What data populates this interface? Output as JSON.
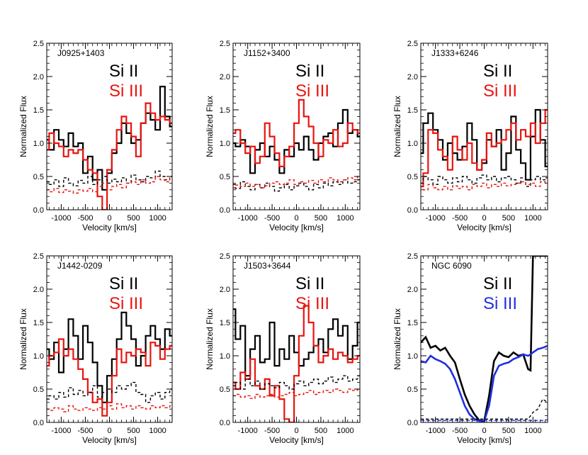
{
  "figure": {
    "xlabel": "Velocity [km/s]",
    "ylabel": "Normalized Flux",
    "si2_label": "Si II",
    "si3_label": "Si III",
    "xticks": [
      "-1000",
      "-500",
      "0",
      "500",
      "1000"
    ],
    "yticks": [
      "0.0",
      "0.5",
      "1.0",
      "1.5",
      "2.0",
      "2.5"
    ],
    "colors": {
      "si2": "#000000",
      "si3_red": "#e8140f",
      "si3_blue": "#1f2fe0",
      "axis": "#000000"
    }
  },
  "chart_data": [
    {
      "type": "line",
      "title": "J0925+1403",
      "xlabel": "Velocity [km/s]",
      "ylabel": "Normalized Flux",
      "xlim": [
        -1300,
        1300
      ],
      "ylim": [
        0,
        2.5
      ],
      "step": true,
      "x": [
        -1300,
        -1200,
        -1100,
        -1000,
        -900,
        -800,
        -700,
        -600,
        -500,
        -400,
        -300,
        -200,
        -100,
        0,
        100,
        200,
        300,
        400,
        500,
        600,
        700,
        800,
        900,
        1000,
        1100,
        1200,
        1300
      ],
      "series": [
        {
          "name": "Si II",
          "color": "#000000",
          "width": 2.2,
          "dash": "",
          "values": [
            1.05,
            0.9,
            1.2,
            1.05,
            0.95,
            1.15,
            0.95,
            1.0,
            0.55,
            0.8,
            0.45,
            0.6,
            0.3,
            0.55,
            0.85,
            1.0,
            1.3,
            1.15,
            1.0,
            1.05,
            1.3,
            1.45,
            1.35,
            1.2,
            1.85,
            1.4,
            1.25
          ]
        },
        {
          "name": "Si III",
          "color": "#e8140f",
          "width": 2.2,
          "dash": "",
          "values": [
            0.9,
            1.15,
            1.0,
            0.95,
            0.8,
            0.9,
            0.85,
            0.9,
            0.75,
            0.6,
            0.55,
            0.2,
            0.0,
            0.6,
            0.9,
            1.2,
            1.4,
            1.3,
            1.1,
            0.8,
            1.3,
            1.6,
            1.45,
            1.35,
            1.4,
            1.35,
            1.3
          ]
        },
        {
          "name": "",
          "color": "#000000",
          "width": 1.4,
          "dash": "4,3",
          "values": [
            0.42,
            0.38,
            0.45,
            0.35,
            0.48,
            0.4,
            0.36,
            0.44,
            0.4,
            0.5,
            0.38,
            0.45,
            0.5,
            0.4,
            0.46,
            0.42,
            0.48,
            0.4,
            0.52,
            0.45,
            0.42,
            0.5,
            0.48,
            0.58,
            0.5,
            0.45,
            0.5
          ]
        },
        {
          "name": "",
          "color": "#e8140f",
          "width": 1.4,
          "dash": "4,3",
          "values": [
            0.3,
            0.27,
            0.32,
            0.26,
            0.3,
            0.28,
            0.25,
            0.3,
            0.28,
            0.32,
            0.27,
            0.35,
            0.4,
            0.3,
            0.35,
            0.38,
            0.33,
            0.4,
            0.42,
            0.38,
            0.45,
            0.4,
            0.42,
            0.5,
            0.45,
            0.42,
            0.5
          ]
        }
      ]
    },
    {
      "type": "line",
      "title": "J1152+3400",
      "xlabel": "Velocity [km/s]",
      "ylabel": "Normalized Flux",
      "xlim": [
        -1300,
        1300
      ],
      "ylim": [
        0,
        2.5
      ],
      "step": true,
      "x": [
        -1300,
        -1200,
        -1100,
        -1000,
        -900,
        -800,
        -700,
        -600,
        -500,
        -400,
        -300,
        -200,
        -100,
        0,
        100,
        200,
        300,
        400,
        500,
        600,
        700,
        800,
        900,
        1000,
        1100,
        1200,
        1300
      ],
      "series": [
        {
          "name": "Si II",
          "color": "#000000",
          "width": 2.2,
          "dash": "",
          "values": [
            1.0,
            0.95,
            1.05,
            0.95,
            0.55,
            0.9,
            1.0,
            0.8,
            0.95,
            0.75,
            0.55,
            0.9,
            0.8,
            1.0,
            0.9,
            1.1,
            0.9,
            0.75,
            1.0,
            1.1,
            1.15,
            0.95,
            1.3,
            1.5,
            1.15,
            1.2,
            1.1
          ]
        },
        {
          "name": "Si III",
          "color": "#e8140f",
          "width": 2.2,
          "dash": "",
          "values": [
            1.15,
            1.2,
            1.0,
            0.85,
            0.95,
            0.7,
            0.8,
            1.3,
            1.1,
            0.85,
            0.65,
            0.8,
            0.95,
            1.3,
            1.65,
            1.4,
            1.25,
            1.0,
            0.8,
            1.05,
            1.0,
            1.2,
            0.95,
            1.0,
            1.3,
            1.2,
            1.15
          ]
        },
        {
          "name": "",
          "color": "#000000",
          "width": 1.4,
          "dash": "4,3",
          "values": [
            0.38,
            0.32,
            0.42,
            0.35,
            0.3,
            0.38,
            0.33,
            0.4,
            0.35,
            0.28,
            0.33,
            0.38,
            0.3,
            0.36,
            0.4,
            0.35,
            0.3,
            0.38,
            0.33,
            0.4,
            0.36,
            0.42,
            0.38,
            0.45,
            0.4,
            0.42,
            0.45
          ]
        },
        {
          "name": "",
          "color": "#e8140f",
          "width": 1.4,
          "dash": "4,3",
          "values": [
            0.33,
            0.37,
            0.35,
            0.4,
            0.35,
            0.38,
            0.33,
            0.36,
            0.4,
            0.42,
            0.38,
            0.4,
            0.45,
            0.38,
            0.42,
            0.4,
            0.44,
            0.4,
            0.45,
            0.42,
            0.48,
            0.45,
            0.42,
            0.45,
            0.48,
            0.45,
            0.5
          ]
        }
      ]
    },
    {
      "type": "line",
      "title": "J1333+6246",
      "xlabel": "Velocity [km/s]",
      "ylabel": "Normalized Flux",
      "xlim": [
        -1300,
        1300
      ],
      "ylim": [
        0,
        2.5
      ],
      "step": true,
      "x": [
        -1300,
        -1200,
        -1100,
        -1000,
        -900,
        -800,
        -700,
        -600,
        -500,
        -400,
        -300,
        -200,
        -100,
        0,
        100,
        200,
        300,
        400,
        500,
        600,
        700,
        800,
        900,
        1000,
        1100,
        1200,
        1300
      ],
      "series": [
        {
          "name": "Si II",
          "color": "#000000",
          "width": 2.2,
          "dash": "",
          "values": [
            0.85,
            1.3,
            1.45,
            1.2,
            1.05,
            0.75,
            1.0,
            0.85,
            0.75,
            0.95,
            1.3,
            1.05,
            0.6,
            0.7,
            1.05,
            0.95,
            1.2,
            0.6,
            0.85,
            1.4,
            0.9,
            0.7,
            0.45,
            1.1,
            1.5,
            1.05,
            0.65
          ]
        },
        {
          "name": "Si III",
          "color": "#e8140f",
          "width": 2.2,
          "dash": "",
          "values": [
            0.35,
            0.55,
            1.2,
            1.15,
            0.9,
            0.8,
            0.6,
            1.1,
            0.9,
            0.75,
            1.0,
            0.7,
            0.6,
            0.75,
            1.15,
            0.95,
            1.0,
            1.05,
            1.2,
            1.3,
            1.05,
            1.2,
            1.1,
            1.3,
            1.0,
            1.3,
            1.5
          ]
        },
        {
          "name": "",
          "color": "#000000",
          "width": 1.4,
          "dash": "4,3",
          "values": [
            0.4,
            0.5,
            0.45,
            0.38,
            0.5,
            0.45,
            0.4,
            0.48,
            0.42,
            0.5,
            0.45,
            0.4,
            0.48,
            0.52,
            0.45,
            0.5,
            0.42,
            0.48,
            0.5,
            0.45,
            0.4,
            0.48,
            0.35,
            0.45,
            0.5,
            0.45,
            0.48
          ]
        },
        {
          "name": "",
          "color": "#e8140f",
          "width": 1.4,
          "dash": "4,3",
          "values": [
            0.35,
            0.3,
            0.38,
            0.33,
            0.3,
            0.35,
            0.3,
            0.36,
            0.32,
            0.35,
            0.3,
            0.38,
            0.35,
            0.4,
            0.33,
            0.38,
            0.35,
            0.4,
            0.36,
            0.38,
            0.4,
            0.42,
            0.38,
            0.4,
            0.35,
            0.42,
            0.4
          ]
        }
      ]
    },
    {
      "type": "line",
      "title": "J1442-0209",
      "xlabel": "Velocity [km/s]",
      "ylabel": "Normalized Flux",
      "xlim": [
        -1300,
        1300
      ],
      "ylim": [
        0,
        2.5
      ],
      "step": true,
      "x": [
        -1300,
        -1200,
        -1100,
        -1000,
        -900,
        -800,
        -700,
        -600,
        -500,
        -400,
        -300,
        -200,
        -100,
        0,
        100,
        200,
        300,
        400,
        500,
        600,
        700,
        800,
        900,
        1000,
        1100,
        1200,
        1300
      ],
      "series": [
        {
          "name": "Si II",
          "color": "#000000",
          "width": 2.2,
          "dash": "",
          "values": [
            1.1,
            0.95,
            1.2,
            0.75,
            1.1,
            1.55,
            1.3,
            0.95,
            1.45,
            1.2,
            0.9,
            0.55,
            0.3,
            0.7,
            0.95,
            1.25,
            1.65,
            1.45,
            1.25,
            0.85,
            1.0,
            1.3,
            1.45,
            1.25,
            1.1,
            1.4,
            1.3
          ]
        },
        {
          "name": "Si III",
          "color": "#e8140f",
          "width": 2.2,
          "dash": "",
          "values": [
            0.85,
            1.0,
            1.05,
            1.25,
            1.0,
            1.1,
            0.95,
            0.8,
            0.65,
            0.45,
            0.3,
            0.35,
            0.1,
            0.3,
            0.7,
            1.1,
            0.9,
            1.05,
            1.0,
            1.1,
            1.05,
            0.85,
            1.2,
            1.15,
            0.95,
            1.1,
            1.15
          ]
        },
        {
          "name": "",
          "color": "#000000",
          "width": 1.4,
          "dash": "4,3",
          "values": [
            0.35,
            0.4,
            0.35,
            0.45,
            0.38,
            0.52,
            0.42,
            0.48,
            0.4,
            0.45,
            0.55,
            0.38,
            0.45,
            0.5,
            0.45,
            0.55,
            0.5,
            0.55,
            0.6,
            0.45,
            0.42,
            0.3,
            0.4,
            0.45,
            0.35,
            0.45,
            0.5
          ]
        },
        {
          "name": "",
          "color": "#e8140f",
          "width": 1.4,
          "dash": "4,3",
          "values": [
            0.2,
            0.18,
            0.22,
            0.2,
            0.16,
            0.25,
            0.2,
            0.18,
            0.22,
            0.2,
            0.18,
            0.22,
            0.2,
            0.25,
            0.2,
            0.28,
            0.22,
            0.25,
            0.2,
            0.25,
            0.22,
            0.2,
            0.25,
            0.22,
            0.25,
            0.22,
            0.25
          ]
        }
      ]
    },
    {
      "type": "line",
      "title": "J1503+3644",
      "xlabel": "Velocity [km/s]",
      "ylabel": "Normalized Flux",
      "xlim": [
        -1300,
        1300
      ],
      "ylim": [
        0,
        2.5
      ],
      "step": true,
      "x": [
        -1300,
        -1200,
        -1100,
        -1000,
        -900,
        -800,
        -700,
        -600,
        -500,
        -400,
        -300,
        -200,
        -100,
        0,
        100,
        200,
        300,
        400,
        500,
        600,
        700,
        800,
        900,
        1000,
        1100,
        1200,
        1300
      ],
      "series": [
        {
          "name": "Si II",
          "color": "#000000",
          "width": 2.2,
          "dash": "",
          "values": [
            1.7,
            1.25,
            1.45,
            0.7,
            1.1,
            1.3,
            0.9,
            0.95,
            1.5,
            0.85,
            1.1,
            0.95,
            1.3,
            1.05,
            0.85,
            0.95,
            1.05,
            1.15,
            1.25,
            1.05,
            1.4,
            1.55,
            1.3,
            1.45,
            0.95,
            1.15,
            1.5
          ]
        },
        {
          "name": "Si III",
          "color": "#e8140f",
          "width": 2.2,
          "dash": "",
          "values": [
            0.6,
            0.5,
            0.75,
            0.65,
            0.95,
            0.55,
            0.5,
            0.65,
            0.4,
            0.55,
            0.35,
            0.05,
            0.0,
            0.7,
            1.3,
            1.75,
            1.5,
            1.15,
            0.9,
            1.0,
            1.1,
            0.95,
            1.05,
            1.0,
            0.9,
            0.95,
            1.0
          ]
        },
        {
          "name": "",
          "color": "#000000",
          "width": 1.4,
          "dash": "4,3",
          "values": [
            0.55,
            0.6,
            0.5,
            0.65,
            0.55,
            0.62,
            0.5,
            0.58,
            0.55,
            0.52,
            0.6,
            0.55,
            0.5,
            0.58,
            0.62,
            0.55,
            0.6,
            0.65,
            0.58,
            0.62,
            0.68,
            0.6,
            0.65,
            0.7,
            0.62,
            0.65,
            0.7
          ]
        },
        {
          "name": "",
          "color": "#e8140f",
          "width": 1.4,
          "dash": "4,3",
          "values": [
            0.4,
            0.42,
            0.38,
            0.4,
            0.36,
            0.42,
            0.38,
            0.4,
            0.42,
            0.38,
            0.4,
            0.42,
            0.45,
            0.4,
            0.42,
            0.45,
            0.48,
            0.42,
            0.45,
            0.48,
            0.45,
            0.5,
            0.48,
            0.45,
            0.5,
            0.48,
            0.5
          ]
        }
      ]
    },
    {
      "type": "line",
      "title": "NGC 6090",
      "xlabel": "Velocity [km/s]",
      "ylabel": "Normalized Flux",
      "xlim": [
        -1300,
        1300
      ],
      "ylim": [
        0,
        2.5
      ],
      "step": false,
      "x": [
        -1300,
        -1200,
        -1100,
        -1000,
        -900,
        -800,
        -700,
        -600,
        -500,
        -400,
        -300,
        -200,
        -100,
        0,
        100,
        200,
        300,
        400,
        500,
        600,
        700,
        800,
        900,
        950,
        1000,
        1100,
        1200,
        1300
      ],
      "series": [
        {
          "name": "Si II",
          "color": "#000000",
          "width": 2.6,
          "dash": "",
          "values": [
            1.2,
            1.28,
            1.12,
            1.15,
            1.08,
            1.12,
            1.0,
            0.9,
            0.65,
            0.42,
            0.25,
            0.12,
            0.03,
            0.02,
            0.4,
            0.92,
            1.05,
            1.0,
            0.98,
            1.05,
            1.0,
            1.02,
            0.8,
            0.78,
            2.5,
            2.5,
            2.5,
            2.5
          ]
        },
        {
          "name": "Si III",
          "color": "#1f2fe0",
          "width": 2.6,
          "dash": "",
          "values": [
            0.92,
            0.9,
            1.0,
            0.95,
            0.92,
            0.88,
            0.8,
            0.65,
            0.45,
            0.25,
            0.12,
            0.05,
            0.02,
            0.02,
            0.25,
            0.7,
            0.85,
            0.88,
            0.9,
            0.95,
            0.98,
            1.02,
            1.0,
            1.02,
            1.05,
            1.1,
            1.12,
            1.15
          ]
        },
        {
          "name": "",
          "color": "#000000",
          "width": 1.4,
          "dash": "4,3",
          "values": [
            0.05,
            0.05,
            0.05,
            0.05,
            0.05,
            0.05,
            0.05,
            0.05,
            0.05,
            0.05,
            0.05,
            0.05,
            0.05,
            0.05,
            0.05,
            0.05,
            0.05,
            0.05,
            0.05,
            0.05,
            0.05,
            0.05,
            0.05,
            0.1,
            0.15,
            0.2,
            0.35,
            0.3
          ]
        },
        {
          "name": "",
          "color": "#1f2fe0",
          "width": 1.4,
          "dash": "5,3",
          "values": [
            0.03,
            0.03,
            0.03,
            0.03,
            0.03,
            0.03,
            0.03,
            0.03,
            0.03,
            0.03,
            0.03,
            0.03,
            0.03,
            0.03,
            0.03,
            0.03,
            0.03,
            0.03,
            0.03,
            0.03,
            0.03,
            0.03,
            0.03,
            0.03,
            0.03,
            0.03,
            0.03,
            0.04
          ]
        }
      ]
    }
  ]
}
